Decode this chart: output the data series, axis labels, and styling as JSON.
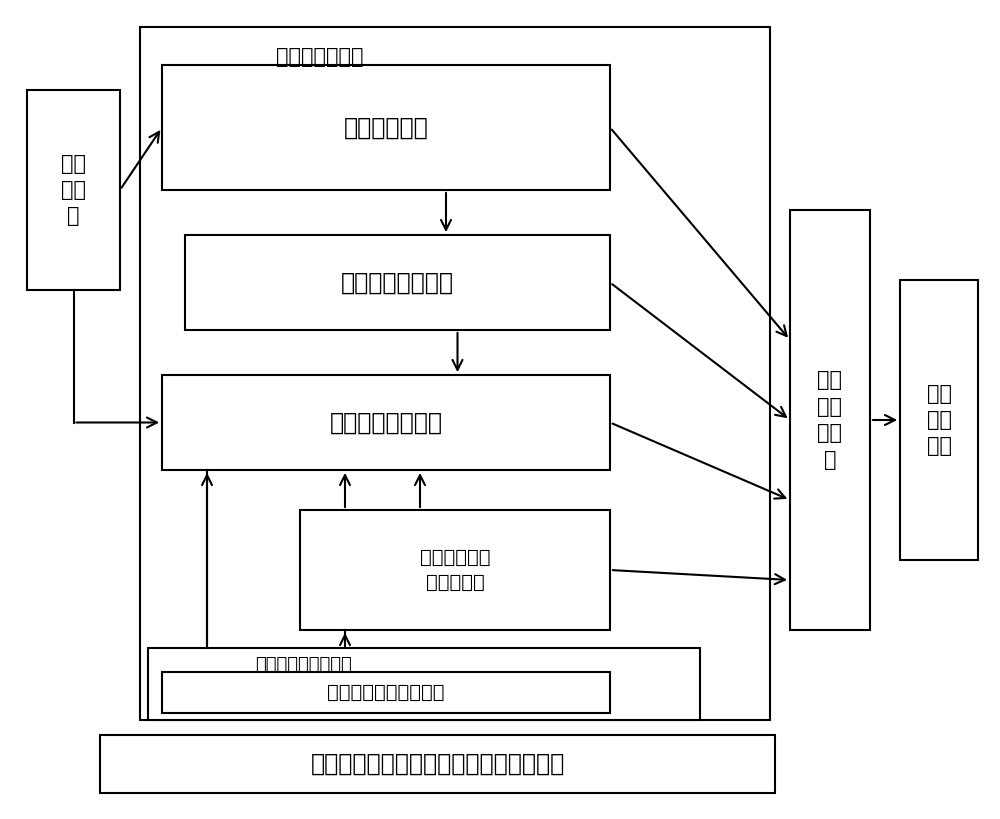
{
  "title": "反馈控制和顺馈补偿结合的复合控温系统",
  "sensor_label": "测温\n传感\n器",
  "box_temp_measure": "温度测量模块",
  "box_ctrl_period": "控温周期调整模块",
  "box_heat_ctrl": "加热时间控制模块",
  "box_heat_set": "可分辨加热时\n间设置模块",
  "box_elec_drive": "电加\n热驱\n动模\n块",
  "box_thermal_impl": "热控\n实施\n模块",
  "box_heat_weight": "外热流内热源加权模块",
  "label_feedback": "温度偏差反馈：",
  "label_feedforward": "外热流内热源顺馈：",
  "bg_color": "#ffffff",
  "lw_outer": 1.5,
  "lw_inner": 1.5,
  "lw_arrow": 1.5,
  "font_size_title": 17,
  "font_size_label": 15,
  "font_size_module": 17,
  "font_size_module_sm": 14,
  "font_size_side": 15,
  "font_size_sensor": 15
}
